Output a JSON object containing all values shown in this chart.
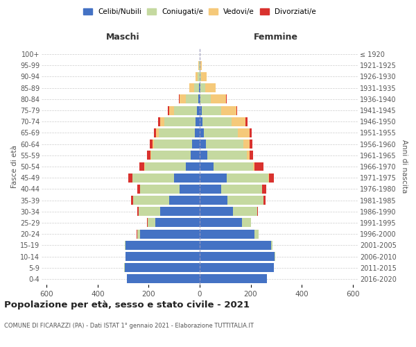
{
  "age_groups": [
    "0-4",
    "5-9",
    "10-14",
    "15-19",
    "20-24",
    "25-29",
    "30-34",
    "35-39",
    "40-44",
    "45-49",
    "50-54",
    "55-59",
    "60-64",
    "65-69",
    "70-74",
    "75-79",
    "80-84",
    "85-89",
    "90-94",
    "95-99",
    "100+"
  ],
  "birth_years": [
    "2016-2020",
    "2011-2015",
    "2006-2010",
    "2001-2005",
    "1996-2000",
    "1991-1995",
    "1986-1990",
    "1981-1985",
    "1976-1980",
    "1971-1975",
    "1966-1970",
    "1961-1965",
    "1956-1960",
    "1951-1955",
    "1946-1950",
    "1941-1945",
    "1936-1940",
    "1931-1935",
    "1926-1930",
    "1921-1925",
    "≤ 1920"
  ],
  "colors": {
    "celibi": "#4472c4",
    "coniugati": "#c5d9a0",
    "vedovi": "#f5c97a",
    "divorziati": "#d9322e"
  },
  "males": {
    "celibi": [
      285,
      295,
      290,
      290,
      235,
      175,
      155,
      120,
      80,
      100,
      55,
      35,
      30,
      20,
      15,
      10,
      5,
      2,
      1,
      1,
      0
    ],
    "coniugati": [
      0,
      1,
      2,
      3,
      10,
      30,
      85,
      140,
      155,
      165,
      160,
      155,
      150,
      140,
      125,
      90,
      50,
      20,
      8,
      2,
      0
    ],
    "vedovi": [
      0,
      0,
      0,
      0,
      0,
      0,
      0,
      0,
      0,
      0,
      2,
      3,
      5,
      10,
      15,
      20,
      25,
      20,
      8,
      2,
      0
    ],
    "divorziati": [
      0,
      0,
      0,
      1,
      2,
      3,
      5,
      8,
      10,
      15,
      20,
      15,
      12,
      10,
      8,
      5,
      2,
      0,
      0,
      0,
      0
    ]
  },
  "females": {
    "celibi": [
      265,
      290,
      295,
      280,
      215,
      165,
      130,
      110,
      85,
      105,
      55,
      30,
      25,
      15,
      10,
      8,
      4,
      2,
      1,
      1,
      0
    ],
    "coniugati": [
      0,
      1,
      2,
      5,
      15,
      35,
      95,
      140,
      160,
      165,
      155,
      155,
      145,
      135,
      115,
      75,
      40,
      20,
      5,
      1,
      0
    ],
    "vedovi": [
      0,
      0,
      0,
      0,
      0,
      0,
      0,
      0,
      1,
      2,
      5,
      10,
      25,
      45,
      55,
      60,
      60,
      40,
      20,
      5,
      0
    ],
    "divorziati": [
      0,
      0,
      0,
      0,
      2,
      2,
      3,
      8,
      15,
      20,
      35,
      14,
      12,
      10,
      8,
      5,
      2,
      0,
      0,
      0,
      0
    ]
  },
  "xlim": 620,
  "title": "Popolazione per età, sesso e stato civile - 2021",
  "subtitle": "COMUNE DI FICARAZZI (PA) - Dati ISTAT 1° gennaio 2021 - Elaborazione TUTTITALIA.IT",
  "ylabel_left": "Fasce di età",
  "ylabel_right": "Anni di nascita",
  "xlabel_maschi": "Maschi",
  "xlabel_femmine": "Femmine",
  "bg_color": "#ffffff",
  "grid_color": "#cccccc",
  "legend_labels": [
    "Celibi/Nubili",
    "Coniugati/e",
    "Vedovi/e",
    "Divorziati/e"
  ]
}
